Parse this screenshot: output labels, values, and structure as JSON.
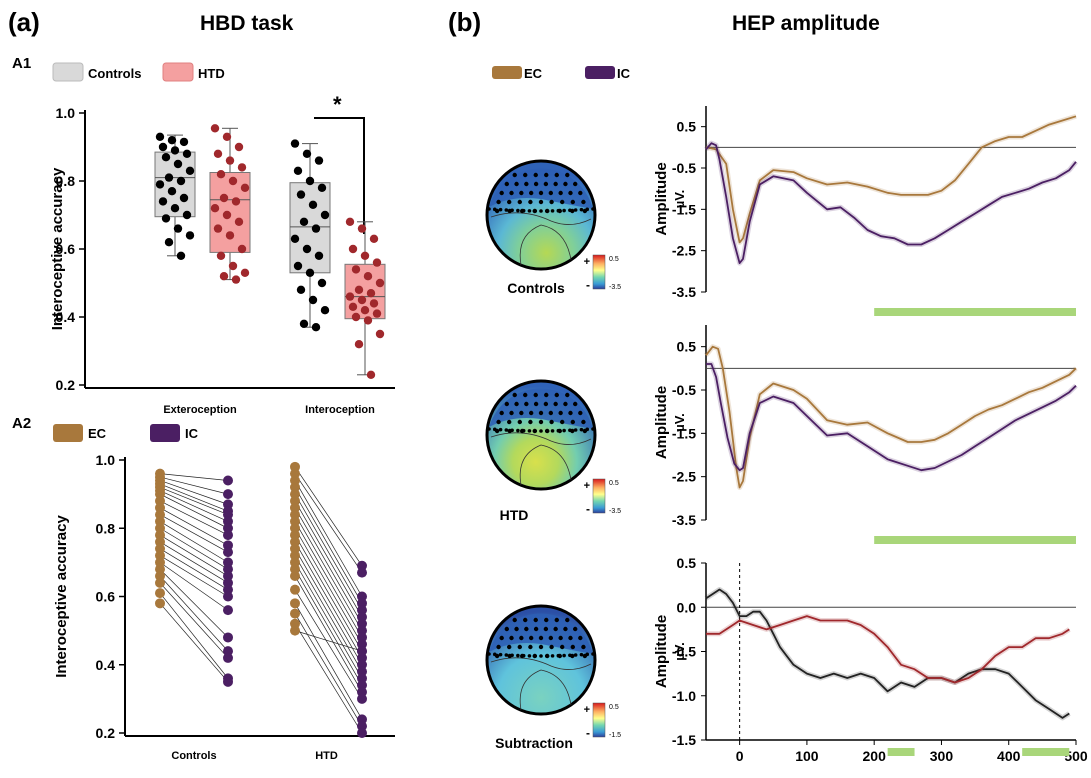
{
  "panel_labels": {
    "a": "(a)",
    "b": "(b)",
    "a1": "A1",
    "a2": "A2"
  },
  "titles": {
    "hbd": "HBD task",
    "hep": "HEP amplitude"
  },
  "legends": {
    "a1": [
      {
        "label": "Controls",
        "color": "#d9d9d9"
      },
      {
        "label": "HTD",
        "color": "#f4a0a0"
      }
    ],
    "a2": [
      {
        "label": "EC",
        "color": "#a8783c"
      },
      {
        "label": "IC",
        "color": "#4b1f63"
      }
    ],
    "b": [
      {
        "label": "EC",
        "color": "#a8783c"
      },
      {
        "label": "IC",
        "color": "#4b1f63"
      }
    ]
  },
  "significance": "*",
  "topomaps": [
    {
      "label": "Controls",
      "scale_max": "0.5",
      "scale_min": "-3.5",
      "plus": "+",
      "minus": "-"
    },
    {
      "label": "HTD",
      "scale_max": "0.5",
      "scale_min": "-3.5",
      "plus": "+",
      "minus": "-"
    },
    {
      "label": "Subtraction",
      "scale_max": "0.5",
      "scale_min": "-1.5",
      "plus": "+",
      "minus": "-"
    }
  ],
  "erp_ylabel": [
    "Amplitude",
    "µV."
  ],
  "chart_data": [
    {
      "type": "box",
      "id": "A1",
      "ylabel": "Interoceptive accuracy",
      "ylim": [
        0.2,
        1.0
      ],
      "yticks": [
        "0.2",
        "0.4",
        "0.6",
        "0.8",
        "1.0"
      ],
      "categories": [
        "Exteroception",
        "Interoception"
      ],
      "series": [
        {
          "name": "Controls",
          "color": "#d9d9d9",
          "dot": "#000000",
          "boxes": [
            {
              "min": 0.58,
              "q1": 0.695,
              "median": 0.81,
              "q3": 0.885,
              "max": 0.935
            },
            {
              "min": 0.37,
              "q1": 0.53,
              "median": 0.665,
              "q3": 0.795,
              "max": 0.91
            }
          ]
        },
        {
          "name": "HTD",
          "color": "#f4a0a0",
          "dot": "#a0282c",
          "boxes": [
            {
              "min": 0.51,
              "q1": 0.59,
              "median": 0.745,
              "q3": 0.825,
              "max": 0.955
            },
            {
              "min": 0.23,
              "q1": 0.395,
              "median": 0.46,
              "q3": 0.555,
              "max": 0.68
            }
          ]
        }
      ],
      "points": {
        "Controls_Exteroception": [
          0.93,
          0.92,
          0.915,
          0.9,
          0.89,
          0.88,
          0.87,
          0.85,
          0.83,
          0.81,
          0.8,
          0.79,
          0.77,
          0.75,
          0.74,
          0.72,
          0.7,
          0.69,
          0.66,
          0.64,
          0.62,
          0.58
        ],
        "HTD_Exteroception": [
          0.955,
          0.93,
          0.9,
          0.88,
          0.86,
          0.84,
          0.82,
          0.8,
          0.78,
          0.75,
          0.74,
          0.72,
          0.7,
          0.68,
          0.66,
          0.64,
          0.6,
          0.58,
          0.55,
          0.53,
          0.52,
          0.51
        ],
        "Controls_Interoception": [
          0.91,
          0.88,
          0.86,
          0.83,
          0.8,
          0.78,
          0.76,
          0.73,
          0.7,
          0.68,
          0.66,
          0.63,
          0.6,
          0.58,
          0.55,
          0.53,
          0.5,
          0.48,
          0.45,
          0.42,
          0.38,
          0.37
        ],
        "HTD_Interoception": [
          0.68,
          0.66,
          0.63,
          0.6,
          0.58,
          0.56,
          0.54,
          0.52,
          0.5,
          0.48,
          0.47,
          0.46,
          0.45,
          0.44,
          0.43,
          0.42,
          0.41,
          0.4,
          0.39,
          0.35,
          0.32,
          0.23
        ]
      }
    },
    {
      "type": "paired-scatter",
      "id": "A2",
      "ylabel": "Interoceptive accuracy",
      "ylim": [
        0.2,
        1.0
      ],
      "yticks": [
        "0.2",
        "0.4",
        "0.6",
        "0.8",
        "1.0"
      ],
      "groups": [
        {
          "name": "Controls",
          "EC": [
            0.96,
            0.95,
            0.94,
            0.93,
            0.92,
            0.91,
            0.9,
            0.88,
            0.86,
            0.84,
            0.82,
            0.8,
            0.78,
            0.76,
            0.74,
            0.72,
            0.7,
            0.68,
            0.66,
            0.64,
            0.61,
            0.58
          ],
          "IC": [
            0.94,
            0.9,
            0.87,
            0.85,
            0.84,
            0.82,
            0.8,
            0.78,
            0.75,
            0.73,
            0.7,
            0.68,
            0.66,
            0.64,
            0.62,
            0.6,
            0.56,
            0.48,
            0.44,
            0.42,
            0.36,
            0.35
          ]
        },
        {
          "name": "HTD",
          "EC": [
            0.98,
            0.96,
            0.94,
            0.92,
            0.9,
            0.88,
            0.86,
            0.84,
            0.82,
            0.8,
            0.78,
            0.76,
            0.74,
            0.72,
            0.7,
            0.68,
            0.66,
            0.62,
            0.58,
            0.55,
            0.52,
            0.5
          ],
          "IC": [
            0.69,
            0.67,
            0.6,
            0.58,
            0.56,
            0.54,
            0.52,
            0.5,
            0.48,
            0.46,
            0.44,
            0.42,
            0.4,
            0.38,
            0.36,
            0.34,
            0.32,
            0.3,
            0.24,
            0.22,
            0.2,
            0.44
          ]
        }
      ]
    },
    {
      "type": "line",
      "id": "B-Controls",
      "ylim": [
        -3.5,
        1.0
      ],
      "yticks": [
        0.5,
        -0.5,
        -1.5,
        -2.5,
        -3.5
      ],
      "ytick_labels": [
        "0.5",
        "-0.5",
        "-1.5",
        "-2.5",
        "-3.5"
      ],
      "xlim": [
        -50,
        500
      ],
      "sig_windows": [
        [
          200,
          500
        ]
      ],
      "series": [
        {
          "name": "EC",
          "color": "#a8783c",
          "x": [
            -50,
            -35,
            -20,
            -10,
            0,
            5,
            15,
            30,
            50,
            80,
            100,
            130,
            160,
            190,
            220,
            240,
            260,
            280,
            300,
            320,
            340,
            360,
            380,
            400,
            420,
            440,
            460,
            480,
            500
          ],
          "y": [
            0,
            -0.05,
            -0.4,
            -1.5,
            -2.3,
            -2.2,
            -1.6,
            -0.8,
            -0.55,
            -0.6,
            -0.75,
            -0.9,
            -0.85,
            -0.95,
            -1.1,
            -1.15,
            -1.15,
            -1.15,
            -1.05,
            -0.8,
            -0.4,
            0,
            0.15,
            0.25,
            0.25,
            0.4,
            0.55,
            0.65,
            0.75
          ]
        },
        {
          "name": "IC",
          "color": "#4b1f63",
          "x": [
            -50,
            -42,
            -35,
            -30,
            -20,
            -10,
            0,
            5,
            15,
            30,
            50,
            80,
            100,
            130,
            150,
            170,
            190,
            210,
            230,
            250,
            270,
            290,
            310,
            330,
            350,
            370,
            390,
            410,
            430,
            450,
            470,
            490,
            500
          ],
          "y": [
            -0.05,
            0.1,
            0.05,
            -0.3,
            -1.2,
            -2.2,
            -2.8,
            -2.7,
            -1.8,
            -0.9,
            -0.7,
            -0.8,
            -1.1,
            -1.5,
            -1.45,
            -1.7,
            -2.0,
            -2.15,
            -2.2,
            -2.35,
            -2.35,
            -2.2,
            -2.0,
            -1.8,
            -1.6,
            -1.4,
            -1.2,
            -1.1,
            -1.0,
            -0.85,
            -0.75,
            -0.55,
            -0.35
          ]
        }
      ]
    },
    {
      "type": "line",
      "id": "B-HTD",
      "ylim": [
        -3.5,
        1.0
      ],
      "yticks": [
        0.5,
        -0.5,
        -1.5,
        -2.5,
        -3.5
      ],
      "ytick_labels": [
        "0.5",
        "-0.5",
        "-1.5",
        "-2.5",
        "-3.5"
      ],
      "xlim": [
        -50,
        500
      ],
      "sig_windows": [
        [
          200,
          500
        ]
      ],
      "series": [
        {
          "name": "EC",
          "color": "#a8783c",
          "x": [
            -50,
            -40,
            -32,
            -25,
            -15,
            -5,
            0,
            5,
            15,
            30,
            50,
            80,
            100,
            130,
            160,
            190,
            220,
            250,
            270,
            290,
            310,
            330,
            350,
            370,
            390,
            410,
            430,
            450,
            470,
            490,
            500
          ],
          "y": [
            0.3,
            0.5,
            0.45,
            0,
            -1.0,
            -2.3,
            -2.75,
            -2.6,
            -1.6,
            -0.6,
            -0.35,
            -0.5,
            -0.7,
            -1.2,
            -1.3,
            -1.25,
            -1.5,
            -1.7,
            -1.7,
            -1.65,
            -1.5,
            -1.3,
            -1.1,
            -0.95,
            -0.85,
            -0.7,
            -0.55,
            -0.45,
            -0.3,
            -0.15,
            0
          ]
        },
        {
          "name": "IC",
          "color": "#4b1f63",
          "x": [
            -50,
            -42,
            -35,
            -28,
            -18,
            -8,
            0,
            5,
            15,
            30,
            50,
            80,
            100,
            130,
            160,
            190,
            220,
            250,
            270,
            290,
            310,
            330,
            350,
            370,
            390,
            410,
            430,
            450,
            470,
            490,
            500
          ],
          "y": [
            0.1,
            0.1,
            -0.2,
            -0.8,
            -1.6,
            -2.2,
            -2.35,
            -2.3,
            -1.5,
            -0.8,
            -0.65,
            -0.8,
            -1.1,
            -1.55,
            -1.5,
            -1.8,
            -2.1,
            -2.25,
            -2.35,
            -2.3,
            -2.15,
            -2.0,
            -1.8,
            -1.6,
            -1.4,
            -1.2,
            -1.05,
            -0.9,
            -0.75,
            -0.55,
            -0.4
          ]
        }
      ]
    },
    {
      "type": "line",
      "id": "B-Subtraction",
      "ylim": [
        -1.5,
        0.5
      ],
      "yticks": [
        0.5,
        0.0,
        -0.5,
        -1.0,
        -1.5
      ],
      "ytick_labels": [
        "0.5",
        "0.0",
        "-0.5",
        "-1.0",
        "-1.5"
      ],
      "xlim": [
        -50,
        500
      ],
      "xticks": [
        0,
        100,
        200,
        300,
        400,
        500
      ],
      "sig_windows": [
        [
          220,
          260
        ],
        [
          420,
          490
        ]
      ],
      "series": [
        {
          "name": "Controls",
          "color": "#222222",
          "x": [
            -50,
            -40,
            -30,
            -20,
            -10,
            0,
            10,
            20,
            30,
            40,
            50,
            60,
            70,
            80,
            100,
            120,
            140,
            160,
            180,
            200,
            220,
            240,
            260,
            280,
            300,
            320,
            340,
            360,
            380,
            400,
            420,
            440,
            460,
            480,
            490
          ],
          "y": [
            0.1,
            0.15,
            0.2,
            0.15,
            0.05,
            -0.1,
            -0.1,
            -0.05,
            -0.05,
            -0.15,
            -0.3,
            -0.45,
            -0.55,
            -0.65,
            -0.75,
            -0.8,
            -0.75,
            -0.8,
            -0.75,
            -0.8,
            -0.95,
            -0.85,
            -0.9,
            -0.8,
            -0.8,
            -0.85,
            -0.75,
            -0.7,
            -0.7,
            -0.75,
            -0.9,
            -1.05,
            -1.15,
            -1.25,
            -1.2
          ]
        },
        {
          "name": "HTD",
          "color": "#a0282c",
          "x": [
            -50,
            -30,
            -10,
            0,
            20,
            40,
            60,
            80,
            100,
            120,
            140,
            160,
            180,
            200,
            220,
            240,
            260,
            280,
            300,
            320,
            340,
            360,
            380,
            400,
            420,
            440,
            460,
            480,
            490
          ],
          "y": [
            -0.3,
            -0.3,
            -0.2,
            -0.15,
            -0.2,
            -0.25,
            -0.2,
            -0.15,
            -0.1,
            -0.15,
            -0.15,
            -0.15,
            -0.2,
            -0.3,
            -0.45,
            -0.65,
            -0.7,
            -0.8,
            -0.8,
            -0.85,
            -0.8,
            -0.7,
            -0.55,
            -0.45,
            -0.45,
            -0.35,
            -0.35,
            -0.3,
            -0.25
          ]
        }
      ]
    }
  ]
}
